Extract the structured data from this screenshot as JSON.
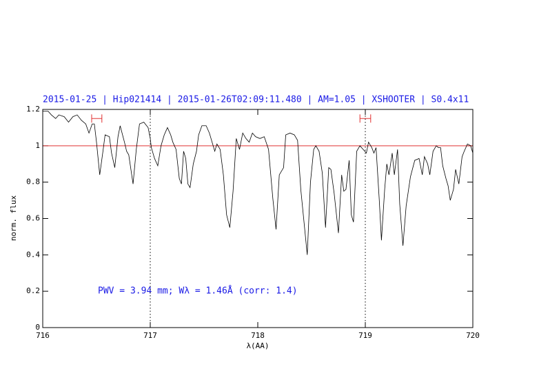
{
  "chart_data": {
    "type": "line",
    "title": "2015-01-25 | Hip021414 | 2015-01-26T02:09:11.480 | AM=1.05 | XSHOOTER | S0.4x11",
    "annotation": "PWV = 3.94 mm; Wλ = 1.46Å (corr: 1.4)",
    "xlabel": "λ(AA)",
    "ylabel": "norm. flux",
    "xlim": [
      716,
      720
    ],
    "xticks": [
      716,
      717,
      718,
      719,
      720
    ],
    "ylim": [
      0,
      1.2
    ],
    "yticks": [
      0,
      0.2,
      0.4,
      0.6,
      0.8,
      1,
      1.2
    ],
    "hline": 1,
    "hline_color": "#e03030",
    "vlines": [
      717,
      719
    ],
    "markers": [
      {
        "x": [
          716.455,
          716.55
        ],
        "y": 1.15
      },
      {
        "x": [
          718.95,
          719.05
        ],
        "y": 1.15
      }
    ],
    "marker_color": "#e03030",
    "x": [
      716.0,
      716.05,
      716.08,
      716.12,
      716.15,
      716.2,
      716.24,
      716.28,
      716.32,
      716.36,
      716.4,
      716.43,
      716.46,
      716.48,
      716.5,
      716.53,
      716.56,
      716.58,
      716.62,
      716.64,
      716.67,
      716.7,
      716.72,
      716.76,
      716.78,
      716.8,
      716.84,
      716.87,
      716.9,
      716.94,
      716.98,
      717.0,
      717.01,
      717.04,
      717.07,
      717.1,
      717.13,
      717.16,
      717.19,
      717.21,
      717.24,
      717.27,
      717.29,
      717.31,
      717.33,
      717.35,
      717.37,
      717.4,
      717.43,
      717.45,
      717.48,
      717.52,
      717.55,
      717.6,
      717.62,
      717.65,
      717.68,
      717.71,
      717.74,
      717.77,
      717.8,
      717.83,
      717.86,
      717.89,
      717.92,
      717.95,
      717.98,
      718.02,
      718.06,
      718.1,
      718.14,
      718.17,
      718.2,
      718.24,
      718.26,
      718.3,
      718.34,
      718.37,
      718.4,
      718.43,
      718.46,
      718.49,
      718.52,
      718.54,
      718.57,
      718.6,
      718.63,
      718.66,
      718.68,
      718.71,
      718.75,
      718.78,
      718.8,
      718.82,
      718.85,
      718.87,
      718.89,
      718.92,
      718.95,
      718.98,
      719.01,
      719.03,
      719.06,
      719.08,
      719.1,
      719.13,
      719.15,
      719.18,
      719.2,
      719.22,
      719.25,
      719.27,
      719.3,
      719.32,
      719.35,
      719.38,
      719.42,
      719.46,
      719.5,
      719.53,
      719.55,
      719.58,
      719.6,
      719.63,
      719.66,
      719.68,
      719.7,
      719.72,
      719.75,
      719.77,
      719.79,
      719.82,
      719.84,
      719.87,
      719.9,
      719.92,
      719.95,
      719.98,
      720.0
    ],
    "series": [
      {
        "color": "#000000",
        "values": [
          1.19,
          1.19,
          1.17,
          1.15,
          1.17,
          1.16,
          1.13,
          1.16,
          1.17,
          1.14,
          1.12,
          1.07,
          1.12,
          1.12,
          1.02,
          0.84,
          0.97,
          1.06,
          1.05,
          0.96,
          0.88,
          1.05,
          1.11,
          1.02,
          0.97,
          0.95,
          0.79,
          0.98,
          1.12,
          1.13,
          1.1,
          1.04,
          0.99,
          0.93,
          0.89,
          1.0,
          1.06,
          1.1,
          1.06,
          1.02,
          0.98,
          0.82,
          0.79,
          0.97,
          0.93,
          0.79,
          0.77,
          0.9,
          0.97,
          1.06,
          1.11,
          1.11,
          1.07,
          0.97,
          1.01,
          0.98,
          0.84,
          0.62,
          0.55,
          0.75,
          1.04,
          0.98,
          1.07,
          1.04,
          1.02,
          1.07,
          1.05,
          1.04,
          1.05,
          0.98,
          0.71,
          0.54,
          0.84,
          0.88,
          1.06,
          1.07,
          1.06,
          1.03,
          0.76,
          0.58,
          0.4,
          0.8,
          0.98,
          1.0,
          0.97,
          0.85,
          0.55,
          0.88,
          0.87,
          0.74,
          0.52,
          0.84,
          0.75,
          0.76,
          0.92,
          0.62,
          0.58,
          0.97,
          1.0,
          0.98,
          0.96,
          1.02,
          0.99,
          0.96,
          0.99,
          0.7,
          0.48,
          0.76,
          0.9,
          0.84,
          0.96,
          0.84,
          0.98,
          0.68,
          0.45,
          0.67,
          0.83,
          0.92,
          0.93,
          0.84,
          0.94,
          0.9,
          0.84,
          0.97,
          1.0,
          0.99,
          0.99,
          0.89,
          0.82,
          0.78,
          0.7,
          0.76,
          0.87,
          0.79,
          0.94,
          0.97,
          1.01,
          1.0,
          0.96
        ]
      }
    ]
  }
}
